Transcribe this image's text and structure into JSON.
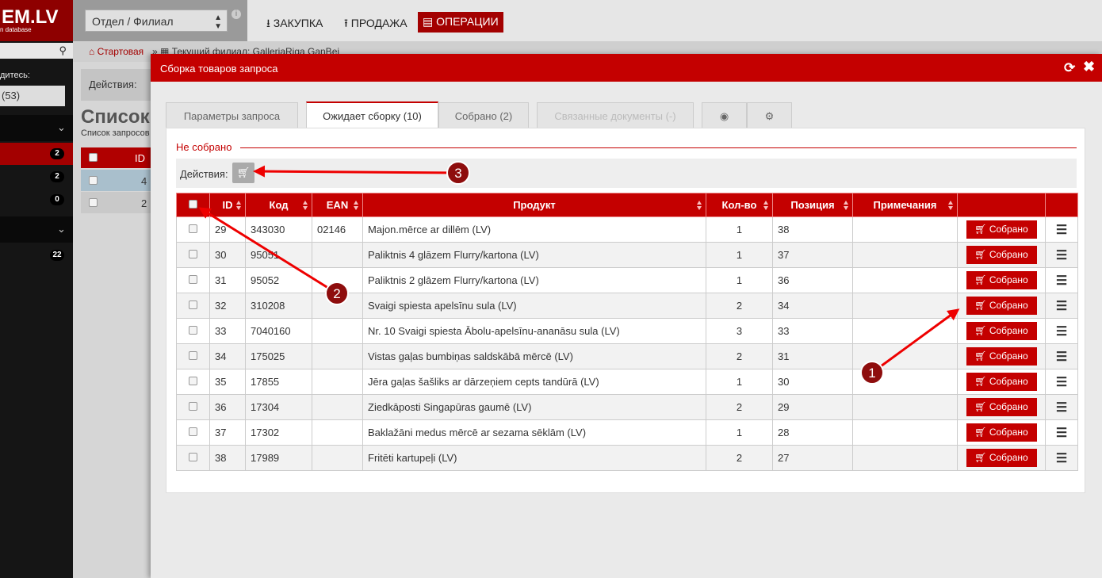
{
  "header": {
    "logo": "EM.LV",
    "logo_sub": "n database",
    "branch_select": "Отдел / Филиал",
    "nav": [
      "ЗАКУПКА",
      "ПРОДАЖА",
      "ОПЕРАЦИИ"
    ]
  },
  "sidebar": {
    "label": "дитесь:",
    "select": "(53)",
    "badges": [
      2,
      2,
      0,
      22
    ]
  },
  "breadcrumb": [
    "Стартовая",
    "Текущий филиал: GalleriaRiga GanBej"
  ],
  "background": {
    "actions": "Действия:",
    "title": "Список",
    "subtitle": "Список запросов",
    "column": "ID",
    "rows": [
      4,
      2
    ]
  },
  "modal": {
    "title": "Сборка товаров запроса",
    "tabs": [
      "Параметры запроса",
      "Ожидает сборку (10)",
      "Собрано (2)",
      "Связанные документы (-)"
    ],
    "legend": "Не собрано",
    "actions": "Действия:",
    "columns": [
      "ID",
      "Код",
      "EAN",
      "Продукт",
      "Кол-во",
      "Позиция",
      "Примечания"
    ],
    "button": "Собрано",
    "rows": [
      {
        "id": 29,
        "code": "343030",
        "ean": "02146",
        "product": "Majon.mērce ar dillēm (LV)",
        "qty": 1,
        "position": 38
      },
      {
        "id": 30,
        "code": "95051",
        "ean": null,
        "product": "Paliktnis 4 glāzem Flurry/kartona (LV)",
        "qty": 1,
        "position": 37
      },
      {
        "id": 31,
        "code": "95052",
        "ean": null,
        "product": "Paliktnis 2 glāzem Flurry/kartona (LV)",
        "qty": 1,
        "position": 36
      },
      {
        "id": 32,
        "code": "310208",
        "ean": null,
        "product": "Svaigi spiesta apelsīnu sula (LV)",
        "qty": 2,
        "position": 34
      },
      {
        "id": 33,
        "code": "7040160",
        "ean": null,
        "product": "Nr. 10 Svaigi spiesta Ābolu-apelsīnu-ananāsu sula (LV)",
        "qty": 3,
        "position": 33
      },
      {
        "id": 34,
        "code": "175025",
        "ean": null,
        "product": "Vistas gaļas bumbiņas saldskābā mērcē (LV)",
        "qty": 2,
        "position": 31
      },
      {
        "id": 35,
        "code": "17855",
        "ean": null,
        "product": "Jēra gaļas šašliks ar dārzeņiem cepts tandūrā (LV)",
        "qty": 1,
        "position": 30
      },
      {
        "id": 36,
        "code": "17304",
        "ean": null,
        "product": "Ziedkāposti Singapūras gaumē (LV)",
        "qty": 2,
        "position": 29
      },
      {
        "id": 37,
        "code": "17302",
        "ean": null,
        "product": "Baklažāni medus mērcē ar sezama sēklām (LV)",
        "qty": 1,
        "position": 28
      },
      {
        "id": 38,
        "code": "17989",
        "ean": null,
        "product": "Fritēti kartupeļi (LV)",
        "qty": 2,
        "position": 27
      }
    ]
  },
  "annotations": [
    "1",
    "2",
    "3"
  ]
}
